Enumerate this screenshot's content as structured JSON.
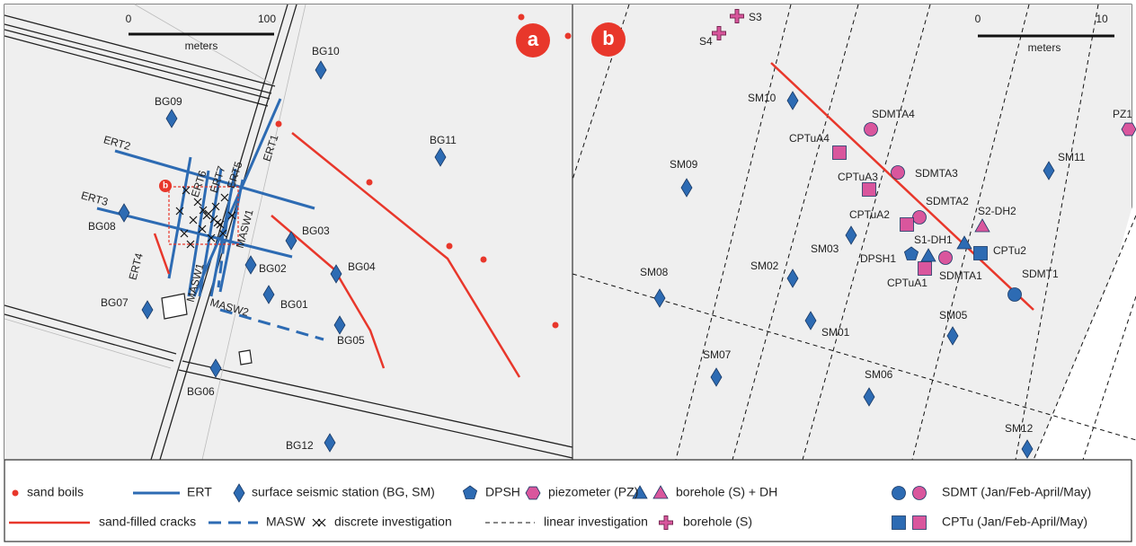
{
  "panel_a": {
    "badge": "a",
    "inset_badge": "b",
    "scale_bar": {
      "start": "0",
      "end": "100",
      "unit": "meters"
    },
    "labels": [
      "BG10",
      "BG09",
      "ERT2",
      "ERT1",
      "ERT6",
      "ERT7",
      "ERT5",
      "BG11",
      "ERT3",
      "BG08",
      "MASW1",
      "BG03",
      "ERT4",
      "BG02",
      "BG04",
      "MASW1",
      "BG01",
      "MASW2",
      "BG07",
      "BG05",
      "BG06",
      "BG12"
    ]
  },
  "panel_b": {
    "badge": "b",
    "scale_bar": {
      "start": "0",
      "end": "10",
      "unit": "meters"
    },
    "labels": [
      "S3",
      "S4",
      "SM10",
      "SDMTA4",
      "PZ1",
      "CPTuA4",
      "SM11",
      "SM09",
      "SDMTA3",
      "CPTuA3",
      "SDMTA2",
      "CPTuA2",
      "S2-DH2",
      "SM03",
      "S1-DH1",
      "CPTu2",
      "DPSH1",
      "SDMTA1",
      "CPTuA1",
      "SM02",
      "SM08",
      "SDMT1",
      "SM05",
      "SM01",
      "SM07",
      "SM06",
      "SM12"
    ]
  },
  "legend": [
    "sand boils",
    "ERT",
    "surface seismic station (BG, SM)",
    "DPSH",
    "piezometer (PZ)",
    "borehole (S) + DH",
    "SDMT (Jan/Feb-April/May)",
    "sand-filled cracks",
    "MASW",
    "discrete investigation",
    "linear investigation",
    "borehole (S)",
    "CPTu  (Jan/Feb-April/May)"
  ]
}
